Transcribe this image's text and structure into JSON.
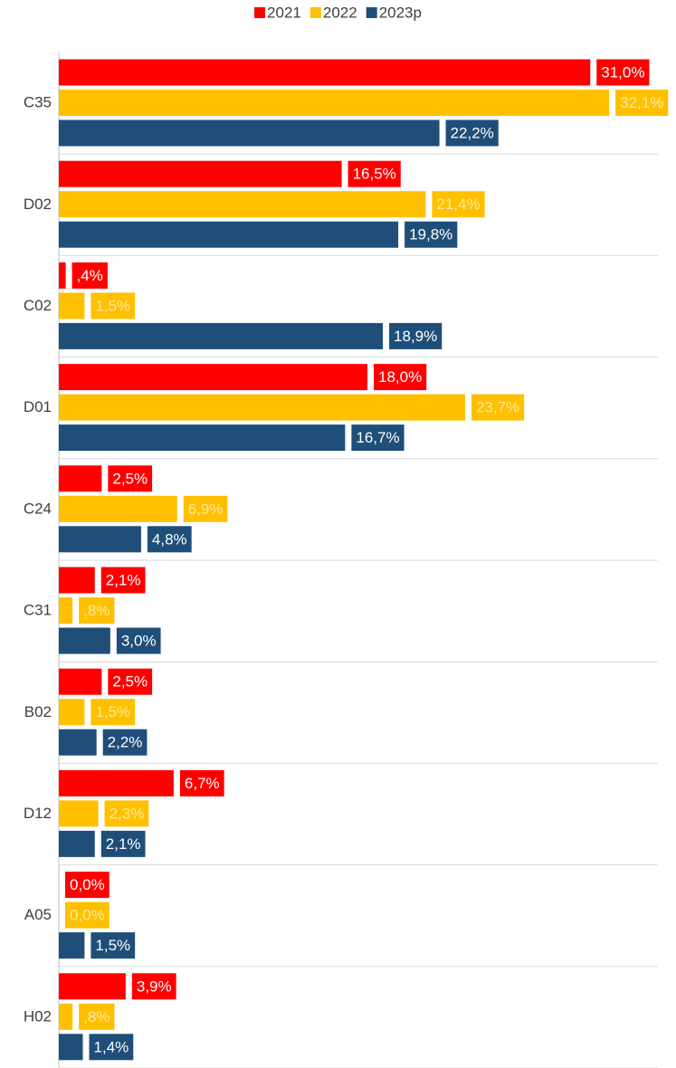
{
  "chart_data": {
    "type": "hbar",
    "categories": [
      "C35",
      "D02",
      "C02",
      "D01",
      "C24",
      "C31",
      "B02",
      "D12",
      "A05",
      "H02"
    ],
    "series": [
      {
        "name": "2021",
        "color": "#ff0000",
        "label_text_color": "#ffffff",
        "values": [
          31.0,
          16.5,
          0.4,
          18.0,
          2.5,
          2.1,
          2.5,
          6.7,
          0.0,
          3.9
        ],
        "value_labels": [
          "31,0%",
          "16,5%",
          ",4%",
          "18,0%",
          "2,5%",
          "2,1%",
          "2,5%",
          "6,7%",
          "0,0%",
          "3,9%"
        ]
      },
      {
        "name": "2022",
        "color": "#ffc000",
        "label_text_color": "#fde9a6",
        "values": [
          32.1,
          21.4,
          1.5,
          23.7,
          6.9,
          0.8,
          1.5,
          2.3,
          0.0,
          0.8
        ],
        "value_labels": [
          "32,1%",
          "21,4%",
          "1,5%",
          "23,7%",
          "6,9%",
          ",8%",
          "1,5%",
          "2,3%",
          "0,0%",
          ",8%"
        ]
      },
      {
        "name": "2023p",
        "color": "#1f4e79",
        "label_text_color": "#ffffff",
        "values": [
          22.2,
          19.8,
          18.9,
          16.7,
          4.8,
          3.0,
          2.2,
          2.1,
          1.5,
          1.4
        ],
        "value_labels": [
          "22,2%",
          "19,8%",
          "18,9%",
          "16,7%",
          "4,8%",
          "3,0%",
          "2,2%",
          "2,1%",
          "1,5%",
          "1,4%"
        ]
      }
    ],
    "xlim": [
      0,
      36
    ],
    "legend": "top"
  }
}
